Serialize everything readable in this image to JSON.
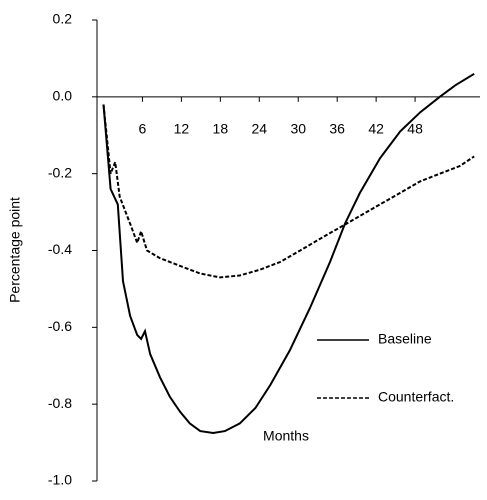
{
  "chart_data": {
    "type": "line",
    "x_label": "Months",
    "y_label": "Percentage point",
    "xlim": [
      -1,
      58
    ],
    "xticks": [
      6,
      12,
      18,
      24,
      30,
      36,
      42,
      48
    ],
    "ylim": [
      -1.0,
      0.2
    ],
    "yticks": [
      {
        "value": 0.2,
        "label": "0.2"
      },
      {
        "value": 0.0,
        "label": "0.0"
      },
      {
        "value": -0.2,
        "label": "-0.2"
      },
      {
        "value": -0.4,
        "label": "-0.4"
      },
      {
        "value": -0.6,
        "label": "-0.6"
      },
      {
        "value": -0.8,
        "label": "-0.8"
      },
      {
        "value": -1.0,
        "label": "-1.0"
      }
    ],
    "legend": "lower-right",
    "series": [
      {
        "name": "Baseline",
        "color": "#000000",
        "dash": "solid",
        "x": [
          0,
          1.1,
          2.2,
          3,
          4.1,
          5.2,
          5.8,
          6.4,
          7.2,
          8.7,
          10.2,
          11.8,
          13.3,
          14.9,
          16.9,
          18.7,
          21,
          23.4,
          25.7,
          28.7,
          31.8,
          34.9,
          37.2,
          39.5,
          42.6,
          45.7,
          48.8,
          51.8,
          54.2,
          57.1
        ],
        "values": [
          -0.02,
          -0.24,
          -0.28,
          -0.48,
          -0.57,
          -0.62,
          -0.63,
          -0.61,
          -0.67,
          -0.73,
          -0.78,
          -0.82,
          -0.85,
          -0.87,
          -0.875,
          -0.87,
          -0.85,
          -0.81,
          -0.75,
          -0.66,
          -0.55,
          -0.43,
          -0.33,
          -0.25,
          -0.16,
          -0.09,
          -0.04,
          0.0,
          0.03,
          0.06
        ]
      },
      {
        "name": "Counterfact.",
        "color": "#000000",
        "dash": "dashed",
        "x": [
          0,
          1.1,
          1.8,
          2.5,
          4.1,
          5.2,
          5.8,
          6.7,
          8.7,
          11.8,
          14.9,
          17.9,
          21,
          24.1,
          27.2,
          30.3,
          33.3,
          36.4,
          39.5,
          42.6,
          45.7,
          48.8,
          51.8,
          54.9,
          57.1
        ],
        "values": [
          -0.02,
          -0.2,
          -0.17,
          -0.26,
          -0.33,
          -0.38,
          -0.35,
          -0.4,
          -0.42,
          -0.44,
          -0.46,
          -0.47,
          -0.465,
          -0.45,
          -0.43,
          -0.4,
          -0.37,
          -0.34,
          -0.31,
          -0.28,
          -0.25,
          -0.22,
          -0.2,
          -0.18,
          -0.155
        ]
      }
    ]
  }
}
